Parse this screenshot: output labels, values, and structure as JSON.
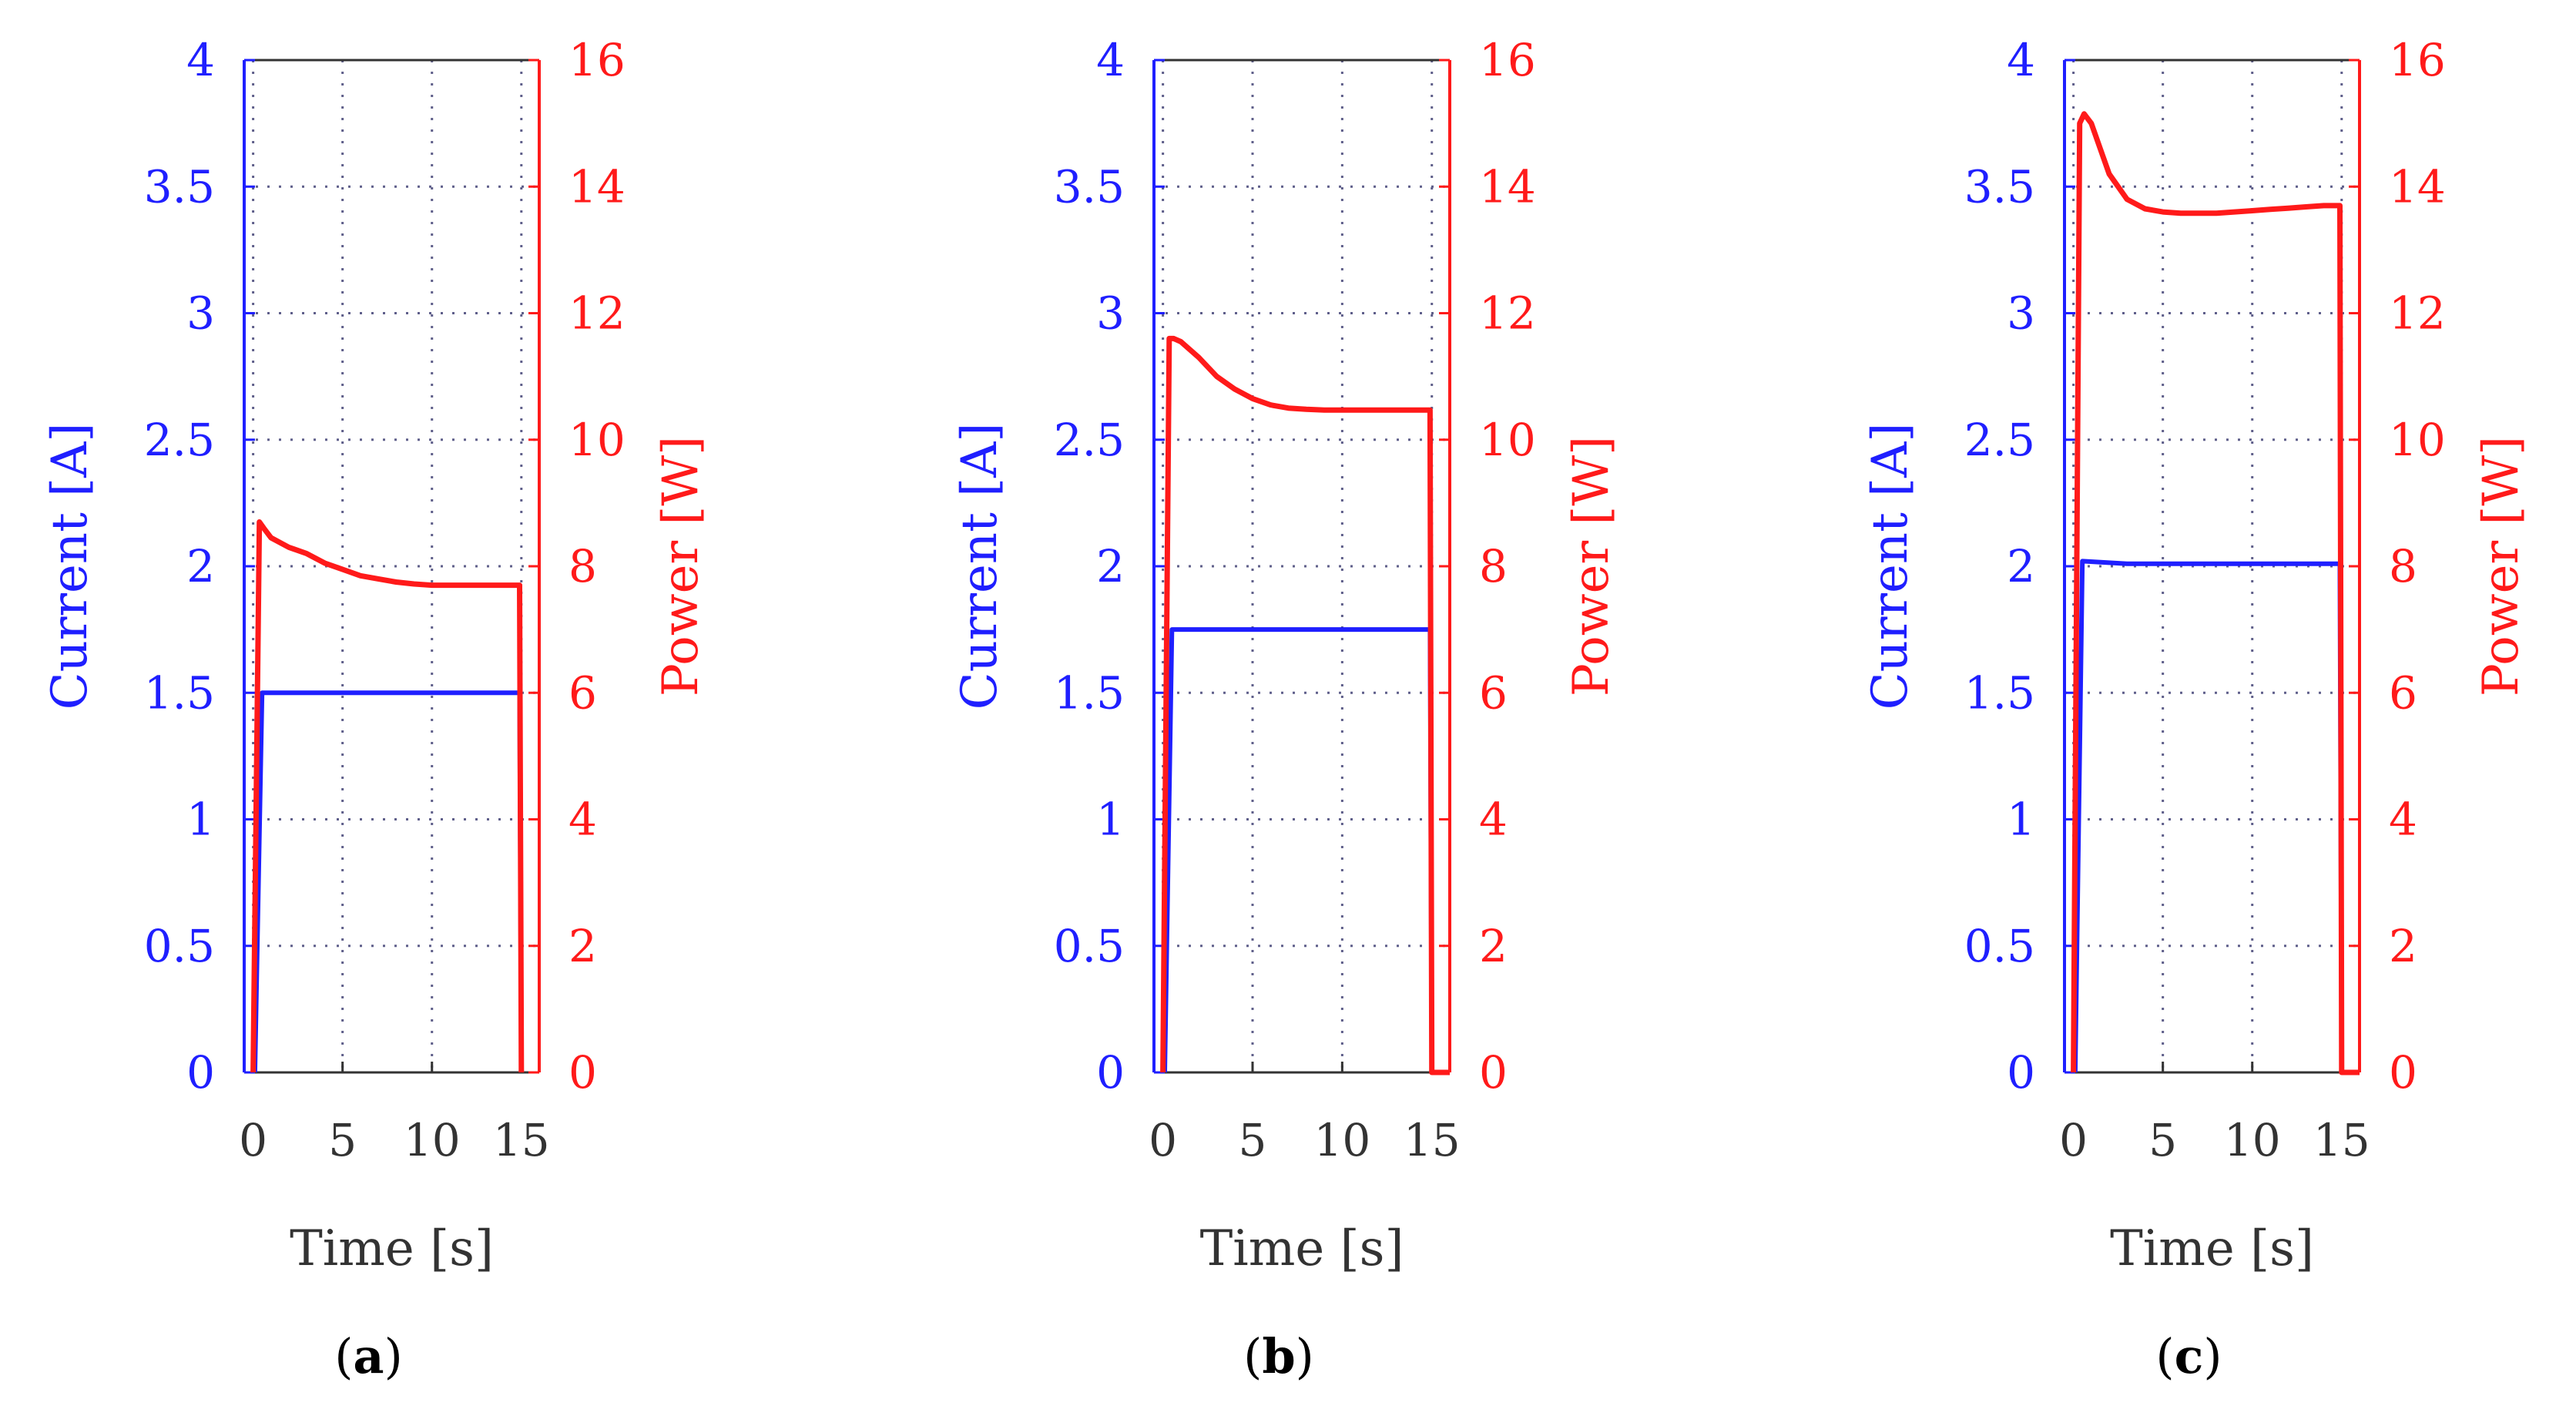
{
  "colors": {
    "current": "#1f1fff",
    "power": "#ff1a1a",
    "time_axis": "#333333",
    "grid": "#5f5f8a"
  },
  "chart_data": [
    {
      "type": "line",
      "caption_open": "(",
      "caption_letter": "a",
      "caption_close": ")",
      "xlabel": "Time [s]",
      "ylabel_left": "Current [A]",
      "ylabel_right": "Power [W]",
      "xlim": [
        -0.5,
        16
      ],
      "ylim_left": [
        0,
        4
      ],
      "ylim_right": [
        0,
        16
      ],
      "xticks": [
        0,
        5,
        10,
        15
      ],
      "yticks_left": [
        0,
        0.5,
        1,
        1.5,
        2,
        2.5,
        3,
        3.5,
        4
      ],
      "yticks_right": [
        0,
        2,
        4,
        6,
        8,
        10,
        12,
        14,
        16
      ],
      "grid": true,
      "series": [
        {
          "axis": "left",
          "color": "current",
          "x": [
            0.1,
            0.5,
            3,
            6,
            9,
            12,
            14.9,
            15.0
          ],
          "y": [
            0,
            1.5,
            1.5,
            1.5,
            1.5,
            1.5,
            1.5,
            0
          ]
        },
        {
          "axis": "right",
          "color": "power",
          "x": [
            0,
            0.35,
            0.6,
            1,
            2,
            3,
            4,
            5,
            6,
            7,
            8,
            9,
            10,
            11,
            12,
            13,
            14,
            14.8,
            14.9,
            15.0
          ],
          "y": [
            0,
            8.7,
            8.6,
            8.45,
            8.3,
            8.2,
            8.05,
            7.95,
            7.85,
            7.8,
            7.75,
            7.72,
            7.7,
            7.7,
            7.7,
            7.7,
            7.7,
            7.7,
            7.7,
            0
          ]
        }
      ]
    },
    {
      "type": "line",
      "caption_open": "(",
      "caption_letter": "b",
      "caption_close": ")",
      "xlabel": "Time [s]",
      "ylabel_left": "Current [A]",
      "ylabel_right": "Power [W]",
      "xlim": [
        -0.5,
        16
      ],
      "ylim_left": [
        0,
        4
      ],
      "ylim_right": [
        0,
        16
      ],
      "xticks": [
        0,
        5,
        10,
        15
      ],
      "yticks_left": [
        0,
        0.5,
        1,
        1.5,
        2,
        2.5,
        3,
        3.5,
        4
      ],
      "yticks_right": [
        0,
        2,
        4,
        6,
        8,
        10,
        12,
        14,
        16
      ],
      "grid": true,
      "series": [
        {
          "axis": "left",
          "color": "current",
          "x": [
            0.1,
            0.5,
            3,
            6,
            9,
            12,
            14.9,
            15.0
          ],
          "y": [
            0,
            1.75,
            1.75,
            1.75,
            1.75,
            1.75,
            1.75,
            0
          ]
        },
        {
          "axis": "right",
          "color": "power",
          "x": [
            0,
            0.35,
            0.6,
            1,
            2,
            3,
            4,
            5,
            6,
            7,
            8,
            9,
            10,
            11,
            12,
            13,
            14,
            14.8,
            14.9,
            15.0,
            16
          ],
          "y": [
            0,
            11.6,
            11.6,
            11.55,
            11.3,
            11.0,
            10.8,
            10.65,
            10.55,
            10.5,
            10.48,
            10.47,
            10.47,
            10.47,
            10.47,
            10.47,
            10.47,
            10.47,
            10.47,
            0,
            0
          ]
        }
      ]
    },
    {
      "type": "line",
      "caption_open": "(",
      "caption_letter": "c",
      "caption_close": ")",
      "xlabel": "Time [s]",
      "ylabel_left": "Current [A]",
      "ylabel_right": "Power [W]",
      "xlim": [
        -0.5,
        16
      ],
      "ylim_left": [
        0,
        4
      ],
      "ylim_right": [
        0,
        16
      ],
      "xticks": [
        0,
        5,
        10,
        15
      ],
      "yticks_left": [
        0,
        0.5,
        1,
        1.5,
        2,
        2.5,
        3,
        3.5,
        4
      ],
      "yticks_right": [
        0,
        2,
        4,
        6,
        8,
        10,
        12,
        14,
        16
      ],
      "grid": true,
      "series": [
        {
          "axis": "left",
          "color": "current",
          "x": [
            0.1,
            0.5,
            3,
            6,
            9,
            12,
            14.9,
            15.0
          ],
          "y": [
            0,
            2.02,
            2.01,
            2.01,
            2.01,
            2.01,
            2.01,
            0
          ]
        },
        {
          "axis": "right",
          "color": "power",
          "x": [
            0,
            0.35,
            0.6,
            1,
            1.5,
            2,
            3,
            4,
            5,
            6,
            7,
            8,
            9,
            10,
            11,
            12,
            13,
            14,
            14.8,
            14.9,
            15.0,
            16
          ],
          "y": [
            0,
            15.0,
            15.15,
            15.0,
            14.6,
            14.2,
            13.8,
            13.65,
            13.6,
            13.58,
            13.58,
            13.58,
            13.6,
            13.62,
            13.64,
            13.66,
            13.68,
            13.7,
            13.7,
            13.7,
            0,
            0
          ]
        }
      ]
    }
  ]
}
